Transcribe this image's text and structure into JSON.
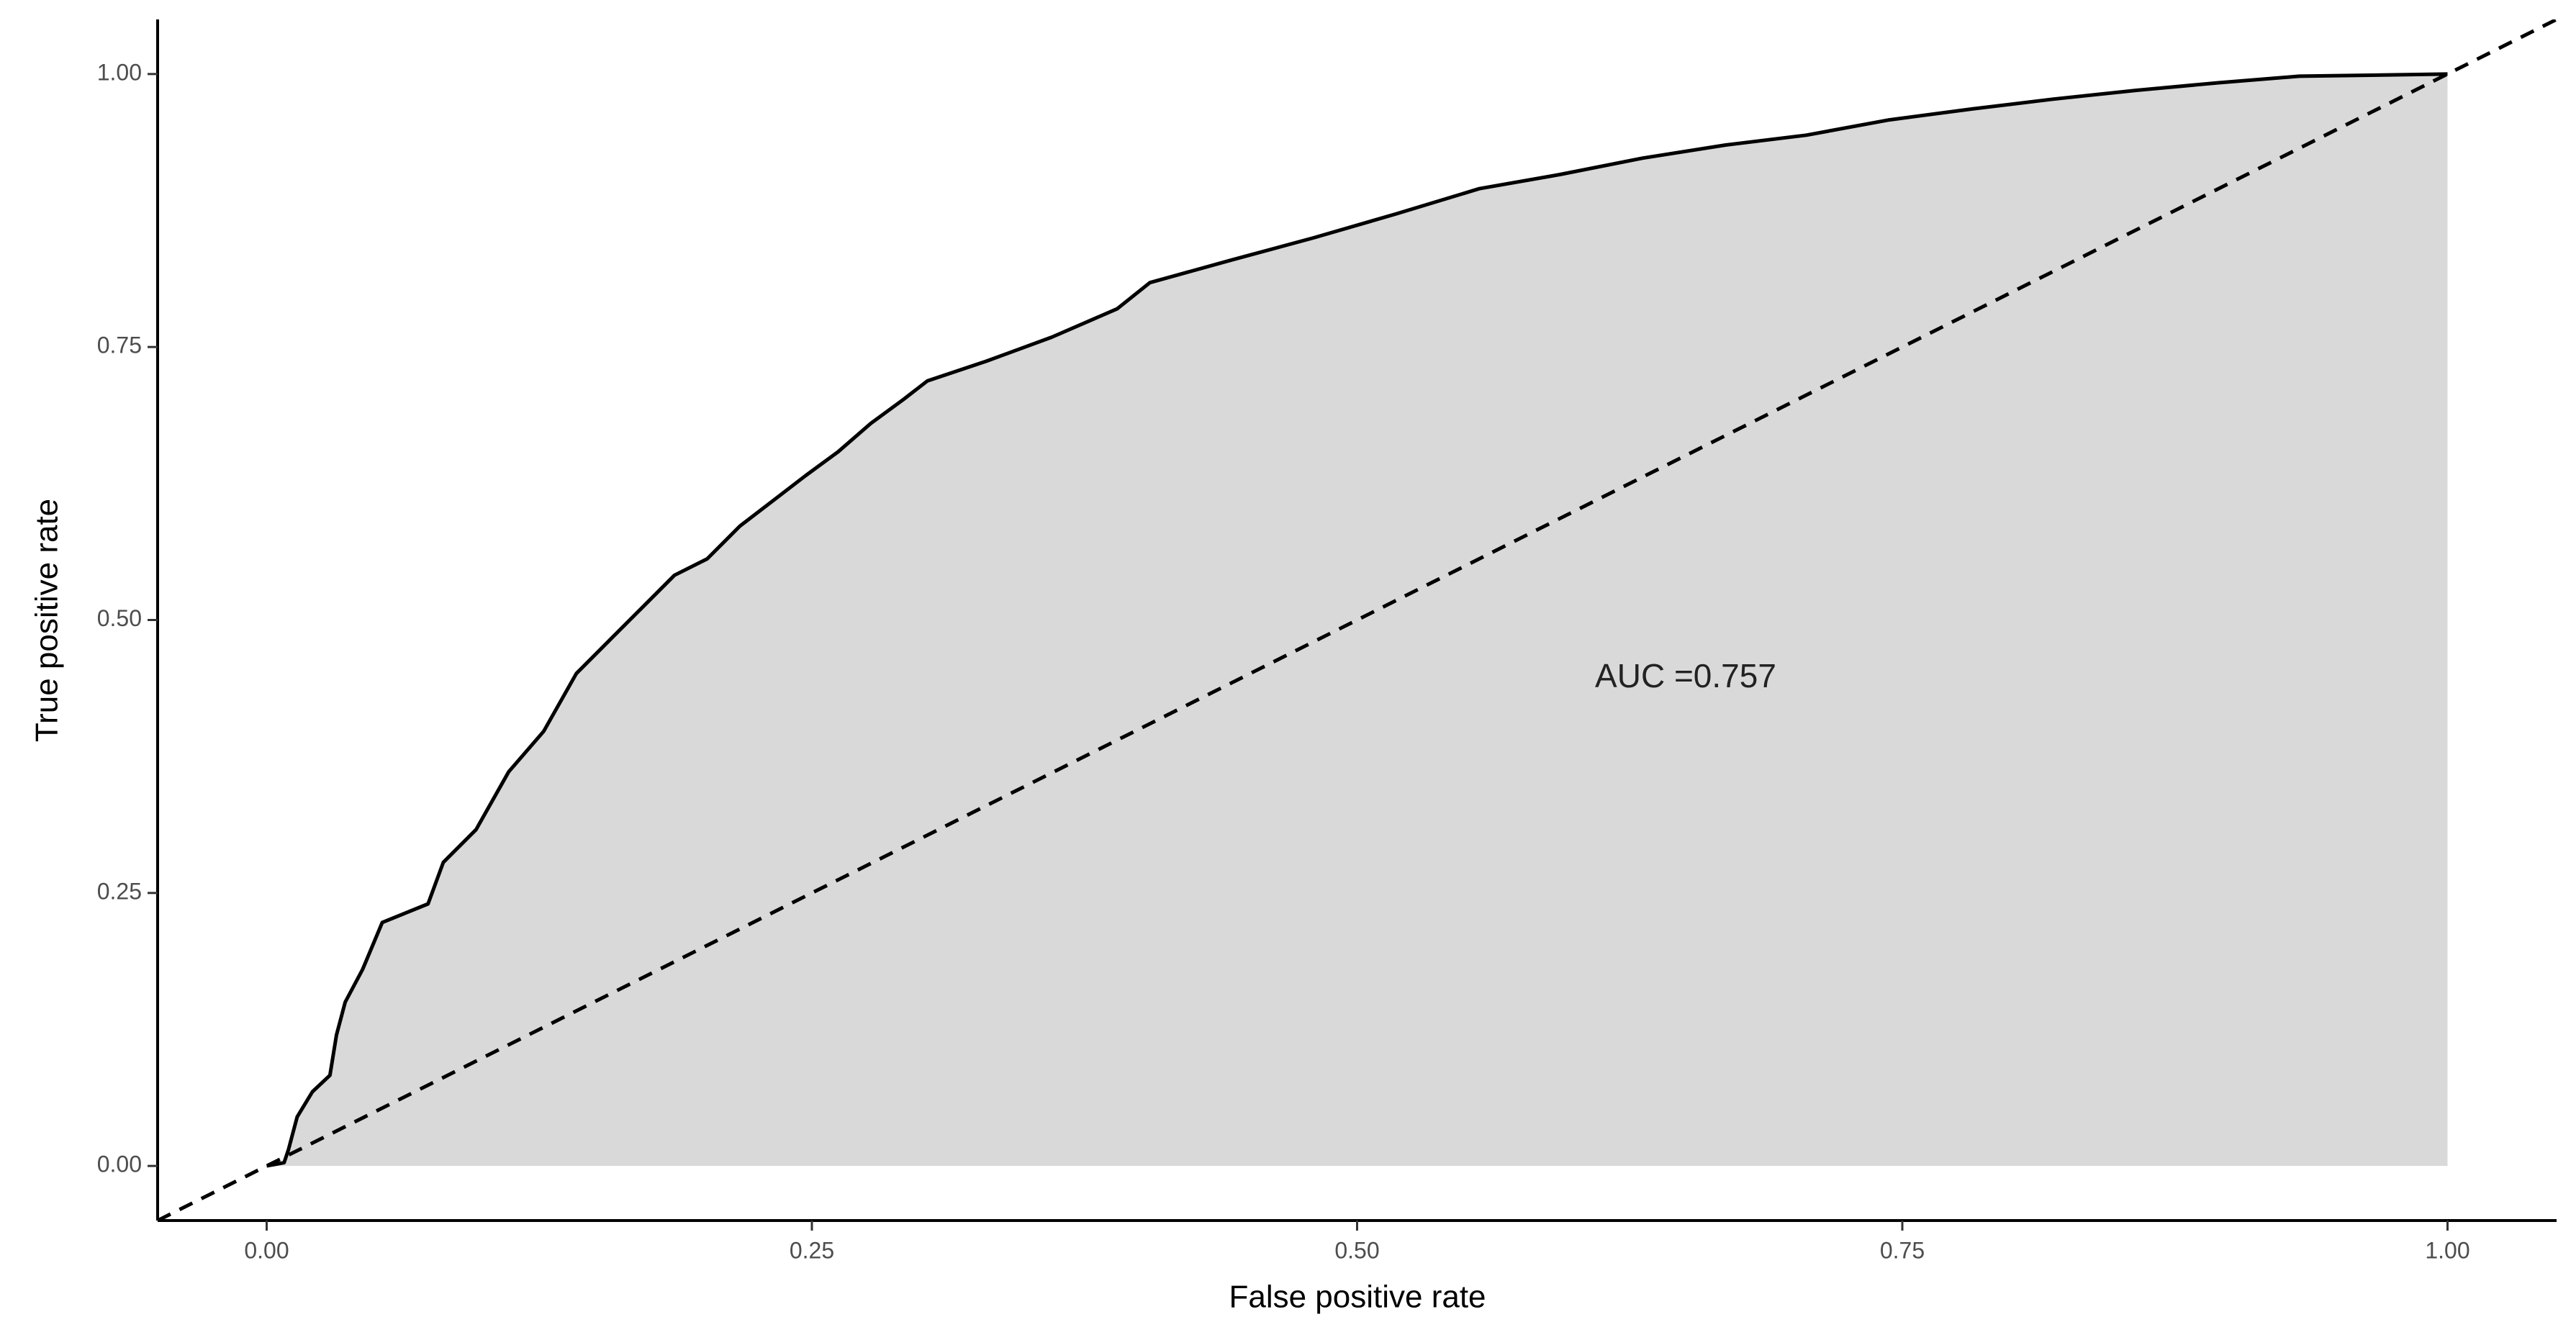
{
  "chart_data": {
    "type": "roc",
    "x_label": "False positive rate",
    "y_label": "True positive rate",
    "annotation": "AUC =0.757",
    "xlim": [
      -0.05,
      1.05
    ],
    "ylim": [
      -0.05,
      1.05
    ],
    "xticks": [
      {
        "value": 0,
        "label": "0.00"
      },
      {
        "value": 0.25,
        "label": "0.25"
      },
      {
        "value": 0.5,
        "label": "0.50"
      },
      {
        "value": 0.75,
        "label": "0.75"
      },
      {
        "value": 1,
        "label": "1.00"
      }
    ],
    "yticks": [
      {
        "value": 0,
        "label": "0.00"
      },
      {
        "value": 0.25,
        "label": "0.25"
      },
      {
        "value": 0.5,
        "label": "0.50"
      },
      {
        "value": 0.75,
        "label": "0.75"
      },
      {
        "value": 1,
        "label": "1.00"
      }
    ],
    "diagonal": {
      "slope": 1,
      "intercept": 0
    },
    "fill_color": "#d9d9d9",
    "line_color": "#000000",
    "x": [
      0,
      0.008,
      0.01,
      0.014,
      0.021,
      0.029,
      0.032,
      0.036,
      0.044,
      0.053,
      0.074,
      0.081,
      0.096,
      0.111,
      0.127,
      0.142,
      0.157,
      0.172,
      0.187,
      0.202,
      0.217,
      0.232,
      0.247,
      0.262,
      0.277,
      0.292,
      0.303,
      0.33,
      0.36,
      0.39,
      0.405,
      0.443,
      0.48,
      0.518,
      0.556,
      0.593,
      0.631,
      0.669,
      0.706,
      0.744,
      0.782,
      0.819,
      0.857,
      0.895,
      0.932,
      1
    ],
    "y": [
      0,
      0.003,
      0.015,
      0.045,
      0.068,
      0.083,
      0.12,
      0.15,
      0.18,
      0.223,
      0.24,
      0.278,
      0.308,
      0.361,
      0.398,
      0.451,
      0.481,
      0.511,
      0.541,
      0.556,
      0.586,
      0.609,
      0.632,
      0.654,
      0.68,
      0.702,
      0.719,
      0.737,
      0.759,
      0.785,
      0.809,
      0.83,
      0.85,
      0.872,
      0.895,
      0.908,
      0.923,
      0.935,
      0.944,
      0.958,
      0.968,
      0.977,
      0.985,
      0.992,
      0.998,
      1
    ]
  }
}
